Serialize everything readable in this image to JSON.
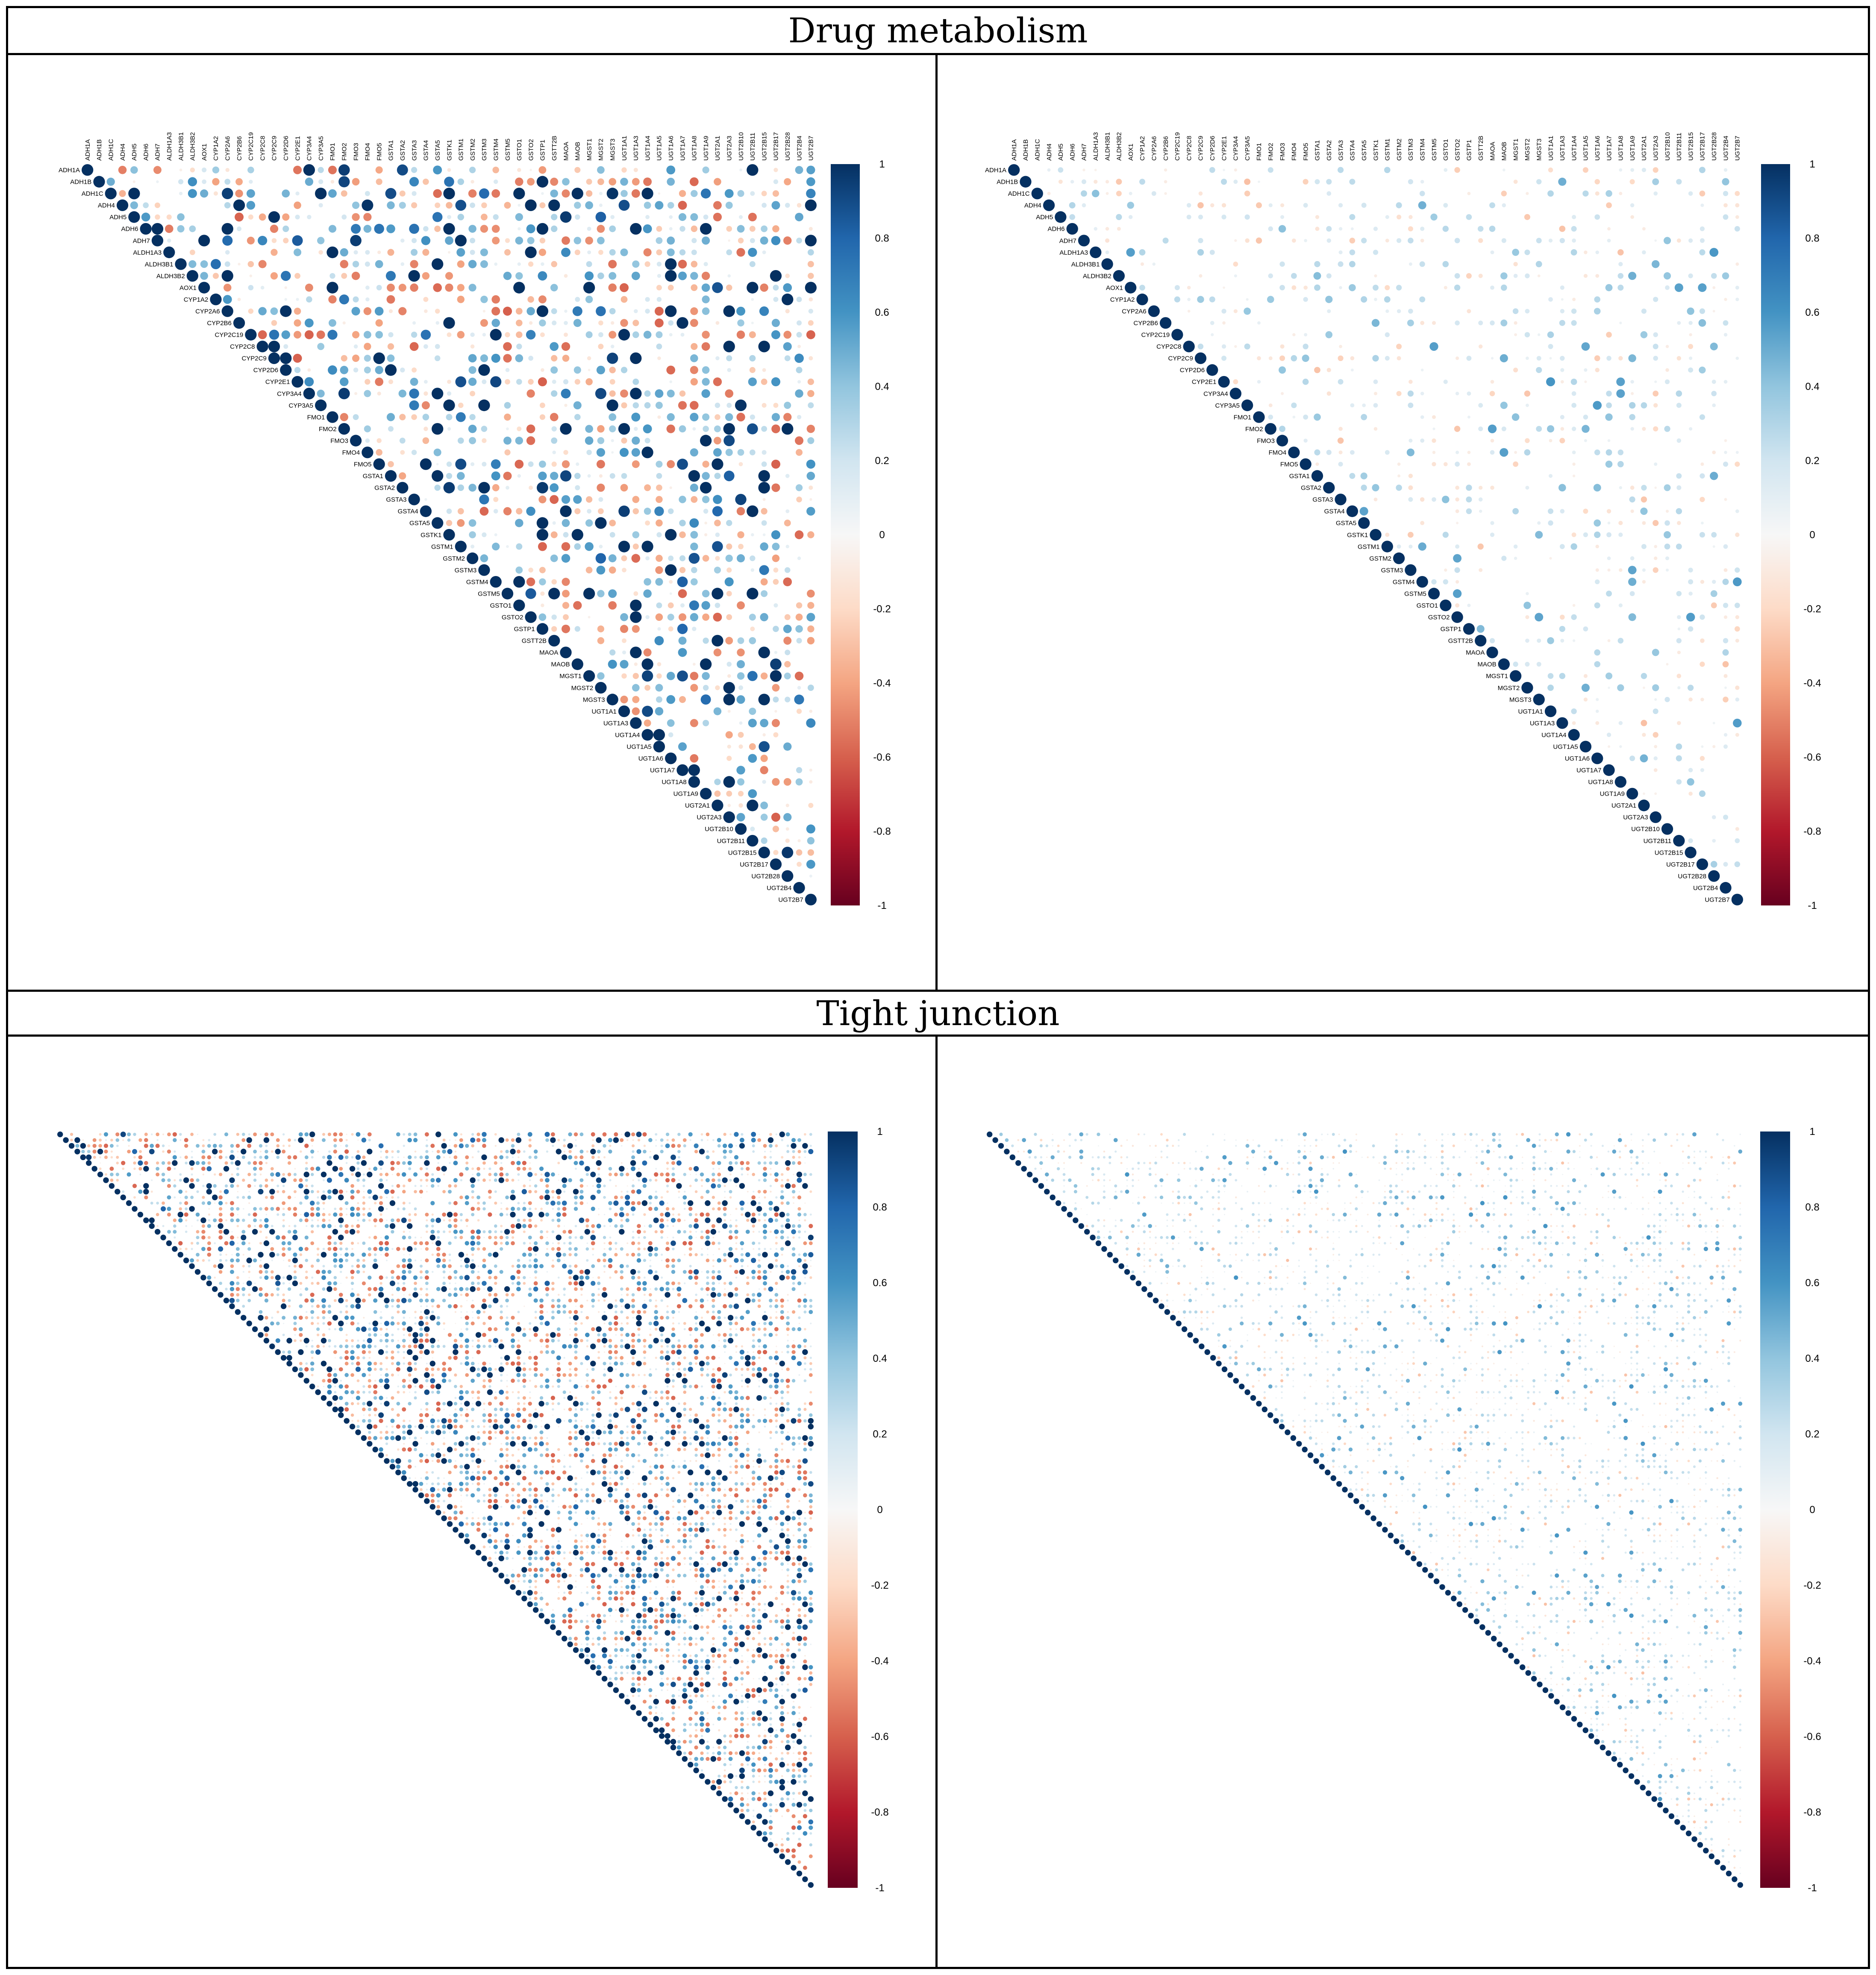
{
  "sections": [
    {
      "id": "drug",
      "title": "Drug metabolism"
    },
    {
      "id": "tj",
      "title": "Tight junction"
    }
  ],
  "colorscale": {
    "ticks": [
      "1",
      "0.8",
      "0.6",
      "0.4",
      "0.2",
      "0",
      "-0.2",
      "-0.4",
      "-0.6",
      "-0.8",
      "-1"
    ],
    "stops": [
      "#053061",
      "#2166ac",
      "#4393c3",
      "#92c5de",
      "#d1e5f0",
      "#f7f7f7",
      "#fddbc7",
      "#f4a582",
      "#d6604d",
      "#b2182b",
      "#67001f"
    ]
  },
  "chart_data": [
    {
      "type": "heatmap",
      "section": "Drug metabolism",
      "panel": "left",
      "matrix": "upper-triangular correlation (circle size and colour = r)",
      "genes": [
        "ADH1A",
        "ADH1B",
        "ADH1C",
        "ADH4",
        "ADH5",
        "ADH6",
        "ADH7",
        "ALDH1A3",
        "ALDH3B1",
        "ALDH3B2",
        "AOX1",
        "CYP1A2",
        "CYP2A6",
        "CYP2B6",
        "CYP2C19",
        "CYP2C8",
        "CYP2C9",
        "CYP2D6",
        "CYP2E1",
        "CYP3A4",
        "CYP3A5",
        "FMO1",
        "FMO2",
        "FMO3",
        "FMO4",
        "FMO5",
        "GSTA1",
        "GSTA2",
        "GSTA3",
        "GSTA4",
        "GSTA5",
        "GSTK1",
        "GSTM1",
        "GSTM2",
        "GSTM3",
        "GSTM4",
        "GSTM5",
        "GSTO1",
        "GSTO2",
        "GSTP1",
        "GSTT2B",
        "MAOA",
        "MAOB",
        "MGST1",
        "MGST2",
        "MGST3",
        "UGT1A1",
        "UGT1A3",
        "UGT1A4",
        "UGT1A5",
        "UGT1A6",
        "UGT1A7",
        "UGT1A8",
        "UGT1A9",
        "UGT2A1",
        "UGT2A3",
        "UGT2B10",
        "UGT2B11",
        "UGT2B15",
        "UGT2B17",
        "UGT2B28",
        "UGT2B4",
        "UGT2B7"
      ],
      "colorbar_range": [
        -1,
        1
      ],
      "diagonal": 1
    },
    {
      "type": "heatmap",
      "section": "Drug metabolism",
      "panel": "right",
      "matrix": "upper-triangular correlation (circle size and colour = r)",
      "genes": [
        "ADH1A",
        "ADH1B",
        "ADH1C",
        "ADH4",
        "ADH5",
        "ADH6",
        "ADH7",
        "ALDH1A3",
        "ALDH3B1",
        "ALDH3B2",
        "AOX1",
        "CYP1A2",
        "CYP2A6",
        "CYP2B6",
        "CYP2C19",
        "CYP2C8",
        "CYP2C9",
        "CYP2D6",
        "CYP2E1",
        "CYP3A4",
        "CYP3A5",
        "FMO1",
        "FMO2",
        "FMO3",
        "FMO4",
        "FMO5",
        "GSTA1",
        "GSTA2",
        "GSTA3",
        "GSTA4",
        "GSTA5",
        "GSTK1",
        "GSTM1",
        "GSTM2",
        "GSTM3",
        "GSTM4",
        "GSTM5",
        "GSTO1",
        "GSTO2",
        "GSTP1",
        "GSTT2B",
        "MAOA",
        "MAOB",
        "MGST1",
        "MGST2",
        "MGST3",
        "UGT1A1",
        "UGT1A3",
        "UGT1A4",
        "UGT1A5",
        "UGT1A6",
        "UGT1A7",
        "UGT1A8",
        "UGT1A9",
        "UGT2A1",
        "UGT2A3",
        "UGT2B10",
        "UGT2B11",
        "UGT2B15",
        "UGT2B17",
        "UGT2B28",
        "UGT2B4",
        "UGT2B7"
      ],
      "colorbar_range": [
        -1,
        1
      ],
      "diagonal": 1
    },
    {
      "type": "heatmap",
      "section": "Tight junction",
      "panel": "left",
      "matrix": "upper-triangular correlation (circle size and colour = r)",
      "n_genes": 132,
      "colorbar_range": [
        -1,
        1
      ],
      "diagonal": 1
    },
    {
      "type": "heatmap",
      "section": "Tight junction",
      "panel": "right",
      "matrix": "upper-triangular correlation (circle size and colour = r)",
      "n_genes": 132,
      "colorbar_range": [
        -1,
        1
      ],
      "diagonal": 1
    }
  ]
}
